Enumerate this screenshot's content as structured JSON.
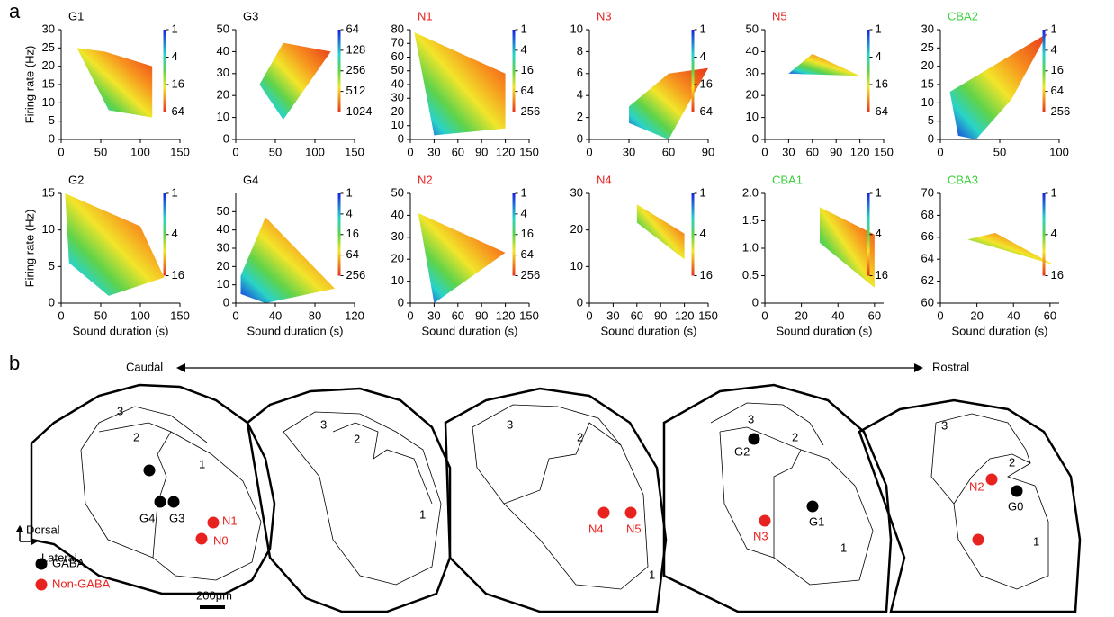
{
  "panel_labels": [
    "a",
    "b"
  ],
  "chart_data": [
    {
      "type": "contour",
      "title": "G1",
      "title_color": "#000000",
      "y_label": "Firing rate (Hz)",
      "xlim": [
        0,
        150
      ],
      "xticks": [
        0,
        50,
        100,
        150
      ],
      "ylim": [
        0,
        30
      ],
      "yticks": [
        0,
        5,
        10,
        15,
        20,
        25,
        30
      ],
      "colorbar_ticks": [
        1,
        4,
        16,
        64
      ],
      "x": [
        20,
        55,
        115,
        115,
        60
      ],
      "y": [
        25,
        24,
        20,
        6,
        8
      ]
    },
    {
      "type": "contour",
      "title": "G3",
      "title_color": "#000000",
      "xlim": [
        0,
        150
      ],
      "xticks": [
        0,
        50,
        100,
        150
      ],
      "ylim": [
        0,
        50
      ],
      "yticks": [
        0,
        10,
        20,
        30,
        40,
        50
      ],
      "colorbar_ticks": [
        64,
        128,
        256,
        512,
        1024
      ],
      "x": [
        30,
        60,
        120,
        60
      ],
      "y": [
        25,
        44,
        40,
        9
      ]
    },
    {
      "type": "contour",
      "title": "N1",
      "title_color": "#e8221f",
      "xlim": [
        0,
        150
      ],
      "xticks": [
        0,
        30,
        60,
        90,
        120,
        150
      ],
      "ylim": [
        0,
        80
      ],
      "yticks": [
        0,
        10,
        20,
        30,
        40,
        50,
        60,
        70,
        80
      ],
      "colorbar_ticks": [
        1,
        4,
        16,
        64,
        256
      ],
      "x": [
        5,
        120,
        120,
        30
      ],
      "y": [
        78,
        48,
        8,
        3
      ]
    },
    {
      "type": "contour",
      "title": "N3",
      "title_color": "#e8221f",
      "xlim": [
        0,
        90
      ],
      "xticks": [
        0,
        30,
        60,
        90
      ],
      "ylim": [
        0,
        10
      ],
      "yticks": [
        0,
        2,
        4,
        6,
        8,
        10
      ],
      "colorbar_ticks": [
        1,
        4,
        16,
        64
      ],
      "x": [
        30,
        60,
        90,
        60,
        30
      ],
      "y": [
        3,
        6,
        6.5,
        0,
        1.5
      ]
    },
    {
      "type": "contour",
      "title": "N5",
      "title_color": "#e8221f",
      "xlim": [
        0,
        150
      ],
      "xticks": [
        0,
        30,
        60,
        90,
        120,
        150
      ],
      "ylim": [
        0,
        50
      ],
      "yticks": [
        0,
        10,
        20,
        30,
        40,
        50
      ],
      "colorbar_ticks": [
        1,
        4,
        16,
        64
      ],
      "x": [
        30,
        60,
        120
      ],
      "y": [
        30,
        39,
        29
      ]
    },
    {
      "type": "contour",
      "title": "CBA2",
      "title_color": "#3ecf3e",
      "xlim": [
        0,
        100
      ],
      "xticks": [
        0,
        50,
        100
      ],
      "ylim": [
        0,
        30
      ],
      "yticks": [
        0,
        5,
        10,
        15,
        20,
        25,
        30
      ],
      "colorbar_ticks": [
        1,
        4,
        16,
        64,
        256
      ],
      "x": [
        8,
        90,
        60,
        30,
        15
      ],
      "y": [
        13,
        29,
        11,
        0,
        1
      ]
    },
    {
      "type": "contour",
      "title": "G2",
      "title_color": "#000000",
      "y_label": "Firing rate (Hz)",
      "x_label": "Sound duration (s)",
      "xlim": [
        0,
        150
      ],
      "xticks": [
        0,
        50,
        100,
        150
      ],
      "ylim": [
        0,
        15
      ],
      "yticks": [
        0,
        5,
        10,
        15
      ],
      "colorbar_ticks": [
        1,
        4,
        16
      ],
      "x": [
        5,
        100,
        130,
        60,
        10
      ],
      "y": [
        15,
        10.5,
        3.5,
        1,
        5.5
      ]
    },
    {
      "type": "contour",
      "title": "G4",
      "title_color": "#000000",
      "x_label": "Sound duration (s)",
      "xlim": [
        0,
        120
      ],
      "xticks": [
        0,
        40,
        80,
        120
      ],
      "ylim": [
        0,
        60
      ],
      "yticks": [
        0,
        10,
        20,
        30,
        40,
        50
      ],
      "colorbar_ticks": [
        1,
        4,
        16,
        64,
        256
      ],
      "x": [
        5,
        30,
        100,
        30,
        5
      ],
      "y": [
        15,
        47,
        8,
        0,
        5
      ]
    },
    {
      "type": "contour",
      "title": "N2",
      "title_color": "#e8221f",
      "x_label": "Sound duration (s)",
      "xlim": [
        0,
        150
      ],
      "xticks": [
        0,
        30,
        60,
        90,
        120,
        150
      ],
      "ylim": [
        0,
        50
      ],
      "yticks": [
        0,
        10,
        20,
        30,
        40,
        50
      ],
      "colorbar_ticks": [
        1,
        4,
        16,
        64,
        256
      ],
      "x": [
        10,
        120,
        30
      ],
      "y": [
        41,
        23,
        0
      ]
    },
    {
      "type": "contour",
      "title": "N4",
      "title_color": "#e8221f",
      "x_label": "Sound duration (s)",
      "xlim": [
        0,
        150
      ],
      "xticks": [
        0,
        30,
        60,
        90,
        120,
        150
      ],
      "ylim": [
        0,
        30
      ],
      "yticks": [
        0,
        10,
        20,
        30
      ],
      "colorbar_ticks": [
        1,
        4,
        16
      ],
      "x": [
        60,
        120,
        120,
        60
      ],
      "y": [
        27,
        19,
        12,
        22
      ]
    },
    {
      "type": "contour",
      "title": "CBA1",
      "title_color": "#3ecf3e",
      "x_label": "Sound duration (s)",
      "xlim": [
        0,
        65
      ],
      "xticks": [
        0,
        20,
        40,
        60
      ],
      "ylim": [
        0,
        2
      ],
      "yticks": [
        0,
        0.5,
        {
          "value": 1,
          "label": "1.0"
        },
        1.5,
        {
          "value": 2,
          "label": "2.0"
        }
      ],
      "colorbar_ticks": [
        1,
        4,
        16
      ],
      "x": [
        30,
        60,
        60,
        30
      ],
      "y": [
        1.75,
        1.25,
        0.28,
        1.1
      ]
    },
    {
      "type": "contour",
      "title": "CBA3",
      "title_color": "#3ecf3e",
      "x_label": "Sound duration (s)",
      "xlim": [
        0,
        65
      ],
      "xticks": [
        0,
        20,
        40,
        60
      ],
      "ylim": [
        60,
        70
      ],
      "yticks": [
        60,
        62,
        64,
        66,
        68,
        70
      ],
      "colorbar_ticks": [
        1,
        4,
        16
      ],
      "x": [
        15,
        30,
        62
      ],
      "y": [
        65.8,
        66.4,
        63.5
      ]
    }
  ],
  "diagram": {
    "axis": {
      "caudal": "Caudal",
      "rostral": "Rostral"
    },
    "orientation": {
      "dorsal": "Dorsal",
      "lateral": "Lateral"
    },
    "legend": [
      "GABA",
      "Non-GABA"
    ],
    "scale_bar": "200μm",
    "sections": [
      {
        "regions": [
          "3",
          "2",
          "1"
        ],
        "neurons": [
          "G4",
          "G3",
          "N1",
          "N0"
        ]
      },
      {
        "regions": [
          "3",
          "2",
          "1"
        ]
      },
      {
        "regions": [
          "3",
          "2",
          "1"
        ],
        "neurons": [
          "N4",
          "N5"
        ]
      },
      {
        "regions": [
          "3",
          "2",
          "1"
        ],
        "neurons": [
          "G2",
          "G1",
          "N3"
        ]
      },
      {
        "regions": [
          "3",
          "2",
          "1"
        ],
        "neurons": [
          "N2",
          "G0"
        ]
      }
    ]
  }
}
